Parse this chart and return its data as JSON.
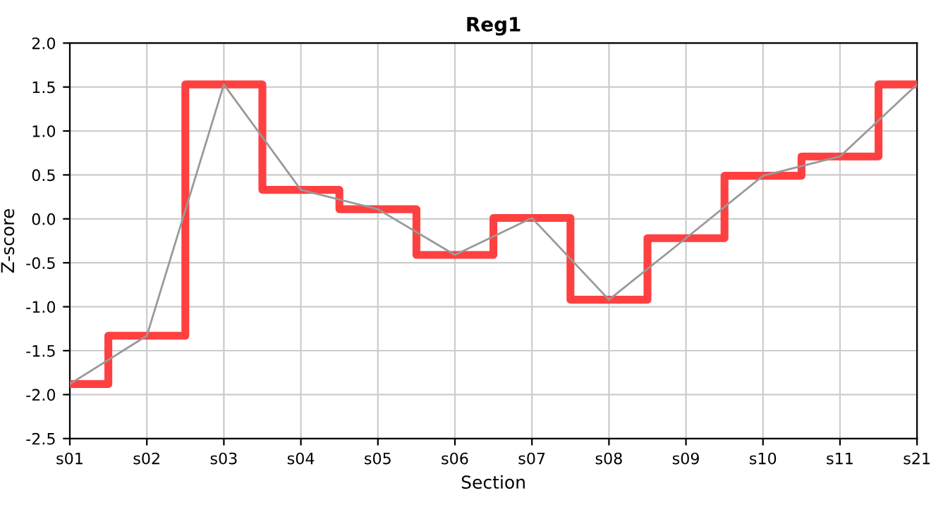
{
  "chart_data": {
    "type": "step",
    "title": "Reg1",
    "xlabel": "Section",
    "ylabel": "Z-score",
    "categories": [
      "s01",
      "s02",
      "s03",
      "s04",
      "s05",
      "s06",
      "s07",
      "s08",
      "s09",
      "s10",
      "s11",
      "s21"
    ],
    "series": [
      {
        "color": "#ff4040",
        "values": [
          -1.88,
          -1.33,
          1.53,
          0.33,
          0.11,
          -0.41,
          0.01,
          -0.92,
          -0.22,
          0.49,
          0.71,
          1.53
        ]
      },
      {
        "type": "line",
        "color": "#999999",
        "values": [
          -1.88,
          -1.33,
          1.53,
          0.33,
          0.11,
          -0.41,
          0.01,
          -0.92,
          -0.22,
          0.49,
          0.71,
          1.53
        ]
      }
    ],
    "ylim": [
      -2.5,
      2.0
    ],
    "yticks": [
      -2.5,
      {
        "value": -2,
        "label": "-2.0"
      },
      -1.5,
      {
        "value": -1,
        "label": "-1.0"
      },
      -0.5,
      {
        "value": 0,
        "label": "0.0"
      },
      0.5,
      {
        "value": 1,
        "label": "1.0"
      },
      1.5,
      {
        "value": 2,
        "label": "2.0"
      }
    ],
    "grid": true
  }
}
